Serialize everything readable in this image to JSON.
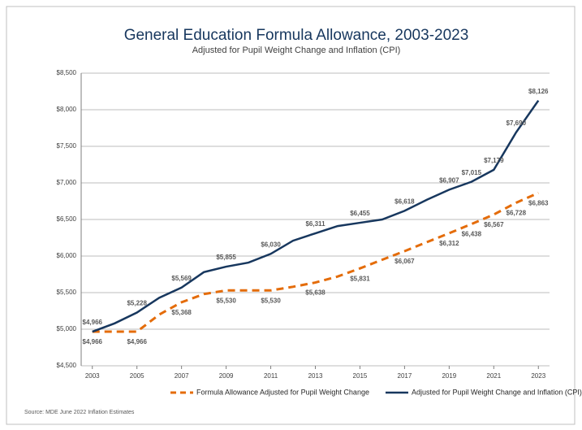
{
  "chart_data": {
    "type": "line",
    "title": "General Education Formula Allowance, 2003-2023",
    "subtitle": "Adjusted for Pupil Weight Change and Inflation (CPI)",
    "source": "Source: MDE June 2022 Inflation Estimates",
    "x": [
      2003,
      2004,
      2005,
      2006,
      2007,
      2008,
      2009,
      2010,
      2011,
      2012,
      2013,
      2014,
      2015,
      2016,
      2017,
      2018,
      2019,
      2020,
      2021,
      2022,
      2023
    ],
    "xlim": [
      2002.5,
      2023.5
    ],
    "xticks": [
      2003,
      2005,
      2007,
      2009,
      2011,
      2013,
      2015,
      2017,
      2019,
      2021,
      2023
    ],
    "ylim": [
      4500,
      8500
    ],
    "yticks": [
      {
        "value": 4500,
        "label": "$4,500"
      },
      {
        "value": 5000,
        "label": "$5,000"
      },
      {
        "value": 5500,
        "label": "$5,500"
      },
      {
        "value": 6000,
        "label": "$6,000"
      },
      {
        "value": 6500,
        "label": "$6,500"
      },
      {
        "value": 7000,
        "label": "$7,000"
      },
      {
        "value": 7500,
        "label": "$7,500"
      },
      {
        "value": 8000,
        "label": "$8,000"
      },
      {
        "value": 8500,
        "label": "$8,500"
      }
    ],
    "grid": true,
    "legend": "bottom",
    "series": [
      {
        "name": "Formula Allowance Adjusted for Pupil Weight Change",
        "color": "#e46c0a",
        "dashed": true,
        "values": [
          4966,
          4966,
          4966,
          5200,
          5368,
          5480,
          5530,
          5530,
          5530,
          5580,
          5638,
          5720,
          5831,
          5950,
          6067,
          6190,
          6312,
          6438,
          6567,
          6728,
          6863
        ],
        "value_labels": [
          "$4,966",
          null,
          "$4,966",
          null,
          "$5,368",
          null,
          "$5,530",
          null,
          "$5,530",
          null,
          "$5,638",
          null,
          "$5,831",
          null,
          "$6,067",
          null,
          "$6,312",
          "$6,438",
          "$6,567",
          "$6,728",
          "$6,863"
        ]
      },
      {
        "name": "Adjusted for Pupil Weight Change and Inflation (CPI)",
        "color": "#17375e",
        "dashed": false,
        "values": [
          4966,
          5080,
          5228,
          5430,
          5569,
          5780,
          5855,
          5910,
          6030,
          6210,
          6311,
          6410,
          6455,
          6500,
          6618,
          6770,
          6907,
          7015,
          7179,
          7690,
          8126
        ],
        "value_labels": [
          "$4,966",
          null,
          "$5,228",
          null,
          "$5,569",
          null,
          "$5,855",
          null,
          "$6,030",
          null,
          "$6,311",
          null,
          "$6,455",
          null,
          "$6,618",
          null,
          "$6,907",
          "$7,015",
          "$7,179",
          "$7,690",
          "$8,126"
        ]
      }
    ]
  }
}
